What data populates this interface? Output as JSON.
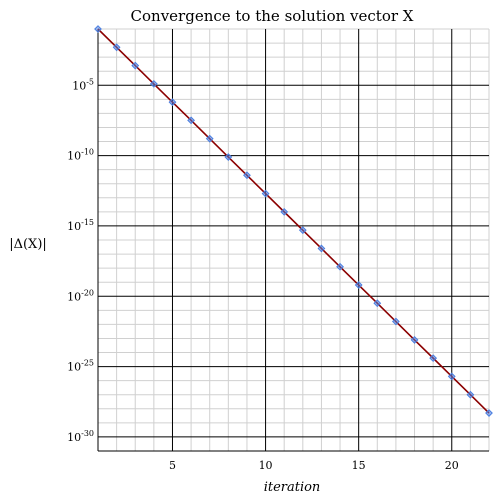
{
  "chart_data": {
    "type": "line",
    "title": "Convergence to the solution vector X",
    "xlabel": "iteration",
    "ylabel": "|Δ(X)|",
    "x_scale": "linear",
    "y_scale": "log",
    "xlim": [
      1,
      22
    ],
    "ylim": [
      1e-31,
      0.1
    ],
    "x_ticks": [
      5,
      10,
      15,
      20
    ],
    "y_ticks": [
      {
        "value": 1e-05,
        "base": "10",
        "exp": "-5"
      },
      {
        "value": 1e-10,
        "base": "10",
        "exp": "-10"
      },
      {
        "value": 1e-15,
        "base": "10",
        "exp": "-15"
      },
      {
        "value": 1e-20,
        "base": "10",
        "exp": "-20"
      },
      {
        "value": 1e-25,
        "base": "10",
        "exp": "-25"
      },
      {
        "value": 1e-30,
        "base": "10",
        "exp": "-30"
      }
    ],
    "grid": true,
    "series": [
      {
        "line_color": "#8b0000",
        "marker_color": "#4a7ee0",
        "marker": "diamond",
        "x": [
          1,
          2,
          3,
          4,
          5,
          6,
          7,
          8,
          9,
          10,
          11,
          12,
          13,
          14,
          15,
          16,
          17,
          18,
          19,
          20,
          21,
          22
        ],
        "y": [
          0.1,
          0.005,
          0.00025,
          1.25e-05,
          6.3e-07,
          3.2e-08,
          1.6e-09,
          7.9e-11,
          4e-12,
          2e-13,
          1e-14,
          5e-16,
          2.5e-17,
          1.25e-18,
          6.3e-20,
          3.2e-21,
          1.6e-22,
          7.9e-24,
          4e-25,
          2e-26,
          1e-27,
          5e-29
        ]
      }
    ]
  }
}
